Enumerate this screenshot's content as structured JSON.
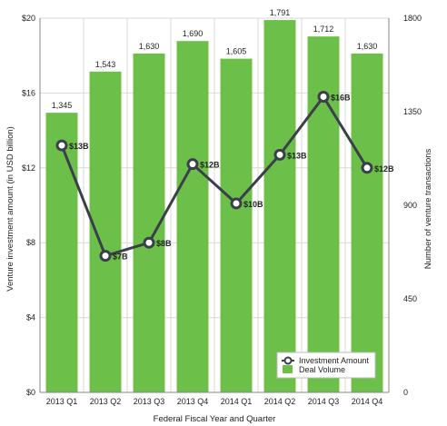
{
  "chart_data": {
    "type": "bar",
    "categories": [
      "2013 Q1",
      "2013 Q2",
      "2013 Q3",
      "2013 Q4",
      "2014 Q1",
      "2014 Q2",
      "2014 Q3",
      "2014 Q4"
    ],
    "xlabel": "Federal Fiscal Year and Quarter",
    "ylabel_left": "Venture investment amount (in USD billion)",
    "ylabel_right": "Number of venture transactions",
    "left_axis": {
      "min": 0,
      "max": 20,
      "ticks": [
        "$0",
        "$4",
        "$8",
        "$12",
        "$16",
        "$20"
      ],
      "tick_values": [
        0,
        4,
        8,
        12,
        16,
        20
      ]
    },
    "right_axis": {
      "min": 0,
      "max": 1800,
      "ticks": [
        "0",
        "450",
        "900",
        "1350",
        "1800"
      ],
      "tick_values": [
        0,
        450,
        900,
        1350,
        1800
      ]
    },
    "grid": true,
    "legend_position": "bottom-right",
    "series": [
      {
        "name": "Deal Volume",
        "type": "bar",
        "axis": "right",
        "color": "#6cc04a",
        "values": [
          1345,
          1543,
          1630,
          1690,
          1605,
          1791,
          1712,
          1630
        ],
        "labels": [
          "1,345",
          "1,543",
          "1,630",
          "1,690",
          "1,605",
          "1,791",
          "1,712",
          "1,630"
        ]
      },
      {
        "name": "Investment Amount",
        "type": "line",
        "axis": "left",
        "color": "#3a3f4a",
        "values": [
          13.2,
          7.3,
          8.0,
          12.2,
          10.1,
          12.7,
          15.8,
          12.0
        ],
        "labels": [
          "$13B",
          "$7B",
          "$8B",
          "$12B",
          "$10B",
          "$13B",
          "$16B",
          "$12B"
        ]
      }
    ]
  }
}
